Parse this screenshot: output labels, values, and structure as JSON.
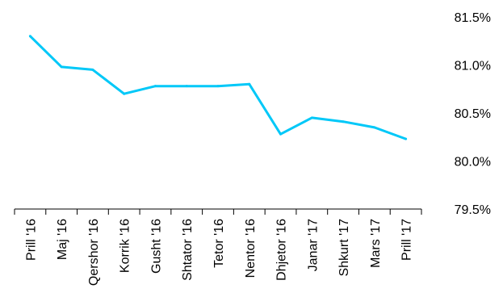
{
  "chart_data": {
    "type": "line",
    "title": "",
    "xlabel": "",
    "ylabel": "",
    "categories": [
      "Prill '16",
      "Maj '16",
      "Qershor '16",
      "Korrik '16",
      "Gusht '16",
      "Shtator '16",
      "Tetor '16",
      "Nentor '16",
      "Dhjetor '16",
      "Janar '17",
      "Shkurt '17",
      "Mars '17",
      "Prill '17"
    ],
    "series": [
      {
        "values": [
          81.3,
          80.98,
          80.95,
          80.7,
          80.78,
          80.78,
          80.78,
          80.8,
          80.28,
          80.45,
          80.41,
          80.35,
          80.23
        ],
        "color": "#00C8F8"
      }
    ],
    "ylim": [
      79.5,
      81.5
    ],
    "yticks": [
      79.5,
      80.0,
      80.5,
      81.0,
      81.5
    ],
    "ytick_labels": [
      "79.5%",
      "80.0%",
      "80.5%",
      "81.0%",
      "81.5%"
    ],
    "y_axis_position": "right",
    "grid": false,
    "legend": "none"
  }
}
